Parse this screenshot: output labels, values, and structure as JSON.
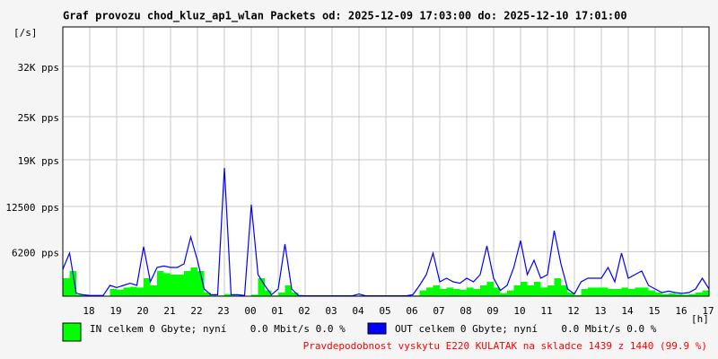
{
  "chart_data": {
    "type": "area_line",
    "title": "Graf provozu chod_kluz_ap1_wlan Packets od: 2025-12-09 17:03:00 do: 2025-12-10 17:01:00",
    "y_label": "[/s]",
    "x_label": "[h]",
    "xlim": [
      0,
      24
    ],
    "xticks": [
      {
        "value": 1,
        "label": "18"
      },
      {
        "value": 2,
        "label": "19"
      },
      {
        "value": 3,
        "label": "20"
      },
      {
        "value": 4,
        "label": "21"
      },
      {
        "value": 5,
        "label": "22"
      },
      {
        "value": 6,
        "label": "23"
      },
      {
        "value": 7,
        "label": "00"
      },
      {
        "value": 8,
        "label": "01"
      },
      {
        "value": 9,
        "label": "02"
      },
      {
        "value": 10,
        "label": "03"
      },
      {
        "value": 11,
        "label": "04"
      },
      {
        "value": 12,
        "label": "05"
      },
      {
        "value": 13,
        "label": "06"
      },
      {
        "value": 14,
        "label": "07"
      },
      {
        "value": 15,
        "label": "08"
      },
      {
        "value": 16,
        "label": "09"
      },
      {
        "value": 17,
        "label": "10"
      },
      {
        "value": 18,
        "label": "11"
      },
      {
        "value": 19,
        "label": "12"
      },
      {
        "value": 20,
        "label": "13"
      },
      {
        "value": 21,
        "label": "14"
      },
      {
        "value": 22,
        "label": "15"
      },
      {
        "value": 23,
        "label": "16"
      },
      {
        "value": 24,
        "label": "17"
      }
    ],
    "ylim": [
      0,
      37500
    ],
    "yticks": [
      {
        "value": 6200,
        "label": "6200 pps"
      },
      {
        "value": 12500,
        "label": "12500 pps"
      },
      {
        "value": 19000,
        "label": "19K pps"
      },
      {
        "value": 25000,
        "label": "25K pps"
      },
      {
        "value": 32000,
        "label": "32K pps"
      }
    ],
    "grid": true,
    "x": [
      0,
      0.25,
      0.5,
      0.75,
      1,
      1.25,
      1.5,
      1.75,
      2,
      2.25,
      2.5,
      2.75,
      3,
      3.25,
      3.5,
      3.75,
      4,
      4.25,
      4.5,
      4.75,
      5,
      5.25,
      5.5,
      5.75,
      6,
      6.25,
      6.5,
      6.75,
      7,
      7.25,
      7.5,
      7.75,
      8,
      8.25,
      8.5,
      8.75,
      9,
      9.25,
      9.5,
      9.75,
      10,
      10.25,
      10.5,
      10.75,
      11,
      11.25,
      11.5,
      11.75,
      12,
      12.25,
      12.5,
      12.75,
      13,
      13.25,
      13.5,
      13.75,
      14,
      14.25,
      14.5,
      14.75,
      15,
      15.25,
      15.5,
      15.75,
      16,
      16.25,
      16.5,
      16.75,
      17,
      17.25,
      17.5,
      17.75,
      18,
      18.25,
      18.5,
      18.75,
      19,
      19.25,
      19.5,
      19.75,
      20,
      20.25,
      20.5,
      20.75,
      21,
      21.25,
      21.5,
      21.75,
      22,
      22.25,
      22.5,
      22.75,
      23,
      23.25,
      23.5,
      23.75,
      24
    ],
    "series": [
      {
        "name": "IN celkem 0 Gbyte; nyní    0.0 Mbit/s 0.0 %",
        "color": "#00ff00",
        "style": "area",
        "values": [
          2500,
          3500,
          200,
          100,
          50,
          50,
          50,
          1000,
          900,
          1200,
          1300,
          1200,
          2500,
          1500,
          3500,
          3200,
          3000,
          3000,
          3500,
          4000,
          3500,
          500,
          100,
          100,
          300,
          100,
          100,
          50,
          200,
          2500,
          800,
          100,
          500,
          1500,
          500,
          50,
          20,
          20,
          20,
          20,
          20,
          20,
          20,
          20,
          100,
          20,
          20,
          20,
          20,
          20,
          20,
          20,
          100,
          800,
          1200,
          1500,
          1000,
          1200,
          1000,
          900,
          1200,
          1000,
          1500,
          2000,
          1200,
          400,
          800,
          1500,
          2000,
          1500,
          2000,
          1200,
          1500,
          2500,
          1500,
          500,
          150,
          1000,
          1200,
          1200,
          1200,
          1000,
          1000,
          1200,
          1000,
          1200,
          1200,
          800,
          500,
          300,
          400,
          300,
          200,
          300,
          500,
          800,
          500
        ]
      },
      {
        "name": "OUT celkem 0 Gbyte; nyní    0.0 Mbit/s 0.0 %",
        "color": "#0000ff",
        "style": "line",
        "values": [
          3750,
          6000,
          400,
          200,
          100,
          100,
          100,
          1500,
          1200,
          1500,
          1800,
          1500,
          6900,
          2000,
          4000,
          4200,
          4000,
          4000,
          4500,
          8250,
          5000,
          1000,
          200,
          200,
          17875,
          200,
          200,
          100,
          12750,
          3000,
          1500,
          200,
          1000,
          7250,
          1000,
          100,
          50,
          50,
          50,
          50,
          50,
          50,
          50,
          50,
          300,
          50,
          50,
          50,
          50,
          50,
          50,
          50,
          200,
          1500,
          3000,
          6000,
          2000,
          2500,
          2000,
          1800,
          2500,
          2000,
          3000,
          7000,
          2500,
          800,
          1500,
          4000,
          7750,
          3000,
          5000,
          2500,
          3000,
          9125,
          4500,
          1000,
          300,
          2000,
          2500,
          2500,
          2500,
          4000,
          2000,
          6000,
          2500,
          3000,
          3500,
          1500,
          1000,
          500,
          700,
          500,
          400,
          500,
          1000,
          2500,
          1000
        ]
      }
    ],
    "footnote": "Pravdepodobnost vyskytu E220 KULATAK na skladce 1439 z 1440 (99.9 %)",
    "footnote_color": "#ff0000"
  }
}
